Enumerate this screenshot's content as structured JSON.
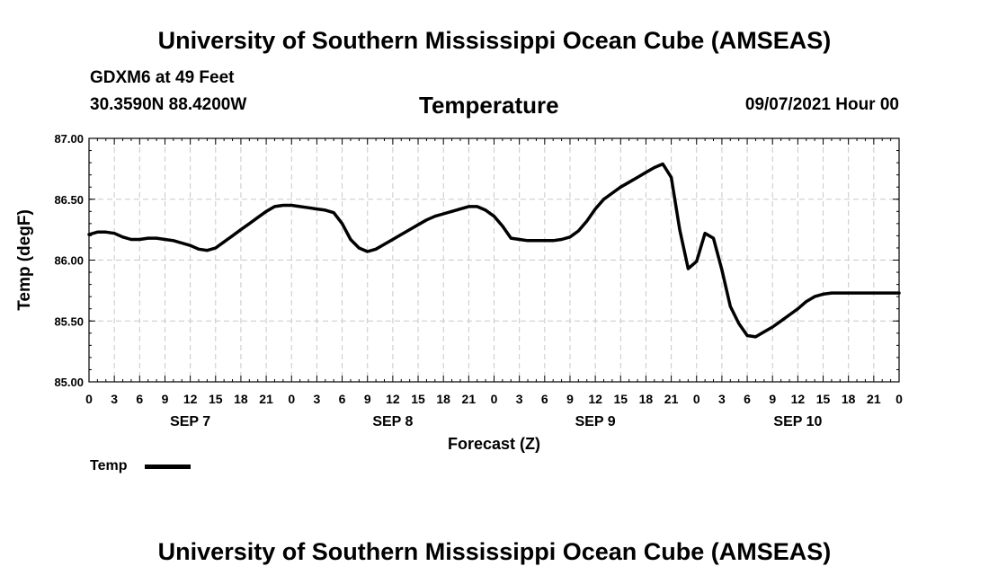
{
  "header": {
    "title": "University of Southern Mississippi Ocean Cube (AMSEAS)",
    "station": "GDXM6 at 49 Feet",
    "coords": "30.3590N  88.4200W",
    "datetime": "09/07/2021 Hour 00"
  },
  "footer": {
    "title": "University of Southern Mississippi Ocean Cube (AMSEAS)"
  },
  "legend": {
    "label": "Temp"
  },
  "colors": {
    "line": "#000000",
    "grid": "#c8c8c8",
    "background": "#ffffff"
  },
  "chart_data": {
    "type": "line",
    "title": "Temperature",
    "xlabel": "Forecast (Z)",
    "ylabel": "Temp (degF)",
    "ylim": [
      85.0,
      87.0
    ],
    "yticks": [
      "85.00",
      "85.50",
      "86.00",
      "86.50",
      "87.00"
    ],
    "xlim": [
      0,
      96
    ],
    "x_tick_labels": [
      "0",
      "3",
      "6",
      "9",
      "12",
      "15",
      "18",
      "21",
      "0",
      "3",
      "6",
      "9",
      "12",
      "15",
      "18",
      "21",
      "0",
      "3",
      "6",
      "9",
      "12",
      "15",
      "18",
      "21",
      "0",
      "3",
      "6",
      "9",
      "12",
      "15",
      "18",
      "21",
      "0"
    ],
    "day_labels": [
      {
        "label": "SEP 7",
        "hour": 12
      },
      {
        "label": "SEP 8",
        "hour": 36
      },
      {
        "label": "SEP 9",
        "hour": 60
      },
      {
        "label": "SEP 10",
        "hour": 84
      }
    ],
    "grid": true,
    "series": [
      {
        "name": "Temp",
        "x": [
          0,
          1,
          2,
          3,
          4,
          5,
          6,
          7,
          8,
          9,
          10,
          11,
          12,
          13,
          14,
          15,
          16,
          17,
          18,
          19,
          20,
          21,
          22,
          23,
          24,
          25,
          26,
          27,
          28,
          29,
          30,
          31,
          32,
          33,
          34,
          35,
          36,
          37,
          38,
          39,
          40,
          41,
          42,
          43,
          44,
          45,
          46,
          47,
          48,
          49,
          50,
          51,
          52,
          53,
          54,
          55,
          56,
          57,
          58,
          59,
          60,
          61,
          62,
          63,
          64,
          65,
          66,
          67,
          68,
          69,
          70,
          71,
          72,
          73,
          74,
          75,
          76,
          77,
          78,
          79,
          80,
          81,
          82,
          83,
          84,
          85,
          86,
          87,
          88,
          89,
          90,
          91,
          92,
          93,
          94,
          95,
          96
        ],
        "values": [
          86.21,
          86.23,
          86.23,
          86.22,
          86.19,
          86.17,
          86.17,
          86.18,
          86.18,
          86.17,
          86.16,
          86.14,
          86.12,
          86.09,
          86.08,
          86.1,
          86.15,
          86.2,
          86.25,
          86.3,
          86.35,
          86.4,
          86.44,
          86.45,
          86.45,
          86.44,
          86.43,
          86.42,
          86.41,
          86.39,
          86.3,
          86.17,
          86.1,
          86.07,
          86.09,
          86.13,
          86.17,
          86.21,
          86.25,
          86.29,
          86.33,
          86.36,
          86.38,
          86.4,
          86.42,
          86.44,
          86.44,
          86.41,
          86.36,
          86.28,
          86.18,
          86.17,
          86.16,
          86.16,
          86.16,
          86.16,
          86.17,
          86.19,
          86.24,
          86.32,
          86.42,
          86.5,
          86.55,
          86.6,
          86.64,
          86.68,
          86.72,
          86.76,
          86.79,
          86.68,
          86.25,
          85.93,
          85.99,
          86.22,
          86.18,
          85.92,
          85.62,
          85.48,
          85.38,
          85.37,
          85.41,
          85.45,
          85.5,
          85.55,
          85.6,
          85.66,
          85.7,
          85.72,
          85.73,
          85.73,
          85.73,
          85.73,
          85.73,
          85.73,
          85.73,
          85.73,
          85.73
        ]
      }
    ]
  }
}
